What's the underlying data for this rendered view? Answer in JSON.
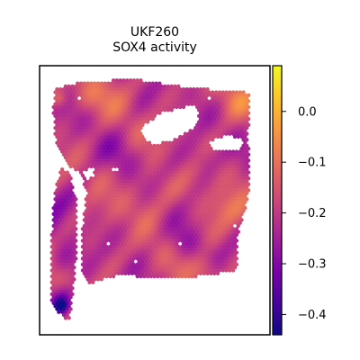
{
  "chart_data": {
    "type": "heatmap",
    "title": "UKF260",
    "subtitle": "SOX4 activity",
    "xlabel": "",
    "ylabel": "",
    "colormap": "plasma",
    "colorbar": {
      "vmin": -0.44,
      "vmax": 0.09,
      "ticks": [
        0.0,
        -0.1,
        -0.2,
        -0.3,
        -0.4
      ],
      "tick_labels": [
        "0.0",
        "−0.1",
        "−0.2",
        "−0.3",
        "−0.4"
      ]
    },
    "grid": false,
    "legend": "colorbar-right"
  }
}
